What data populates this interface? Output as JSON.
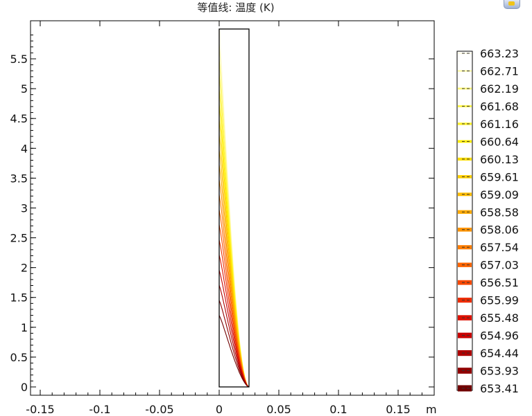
{
  "title": "等值线: 温度 (K)",
  "chart_data": {
    "type": "contour",
    "title": "等值线: 温度 (K)",
    "x_unit": "m",
    "xlim": [
      -0.16,
      0.18
    ],
    "ylim": [
      -0.08,
      6.0
    ],
    "x_ticks": [
      -0.15,
      -0.1,
      -0.05,
      0,
      0.05,
      0.1,
      0.15
    ],
    "x_tick_labels": [
      "-0.15",
      "-0.1",
      "-0.05",
      "0",
      "0.05",
      "0.1",
      "0.15"
    ],
    "y_ticks": [
      0,
      0.5,
      1,
      1.5,
      2,
      2.5,
      3,
      3.5,
      4,
      4.5,
      5,
      5.5
    ],
    "y_tick_labels": [
      "0",
      "0.5",
      "1",
      "1.5",
      "2",
      "2.5",
      "3",
      "3.5",
      "4",
      "4.5",
      "5",
      "5.5"
    ],
    "domain": {
      "x": [
        0,
        0.025
      ],
      "y": [
        0,
        6
      ]
    },
    "contour_levels": [
      663.23,
      662.71,
      662.19,
      661.68,
      661.16,
      660.64,
      660.13,
      659.61,
      659.09,
      658.58,
      658.06,
      657.54,
      657.03,
      656.51,
      655.99,
      655.48,
      654.96,
      654.44,
      653.93,
      653.41
    ],
    "contour_level_labels": [
      "663.23",
      "662.71",
      "662.19",
      "661.68",
      "661.16",
      "660.64",
      "660.13",
      "659.61",
      "659.09",
      "658.58",
      "658.06",
      "657.54",
      "657.03",
      "656.51",
      "655.99",
      "655.48",
      "654.96",
      "654.44",
      "653.93",
      "653.41"
    ],
    "contour_colors": [
      "#fffbe6",
      "#fffba8",
      "#fff878",
      "#fff650",
      "#fff22a",
      "#ffee00",
      "#ffdf00",
      "#ffcf00",
      "#ffbd00",
      "#ffaa00",
      "#ff9400",
      "#ff7d00",
      "#ff6400",
      "#f84800",
      "#ee2c00",
      "#dd1000",
      "#c80000",
      "#ae0000",
      "#900000",
      "#700000"
    ],
    "colormap": "heat",
    "legend_position": "right",
    "grid": false
  }
}
